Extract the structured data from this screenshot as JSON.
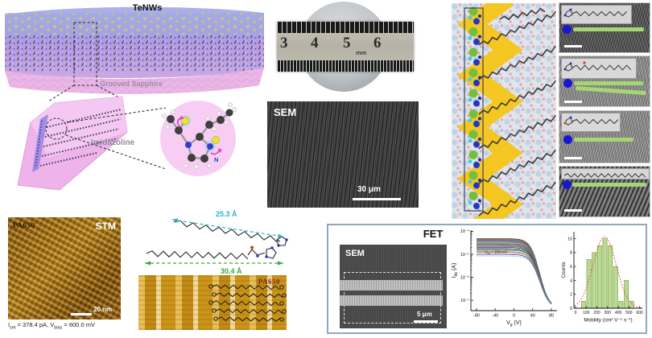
{
  "colors": {
    "green_bar": "#a6d674",
    "marker_blue": "#1717cf",
    "arrow_cyan": "#2ab5c7",
    "arrow_green": "#3aa83a",
    "fet_border": "#8ea8c3"
  },
  "panel_schematic": {
    "label_top": "TeNWs",
    "label_substrate": "Grooved Sapphire",
    "label_molecule": "Imidazoline",
    "atom_label": "N"
  },
  "panel_photo": {
    "ruler_ticks": [
      "3",
      "4",
      "5",
      "6"
    ],
    "ruler_unit": "mm"
  },
  "panel_sem": {
    "label": "SEM",
    "scale_bar": "30 μm"
  },
  "panel_stm": {
    "sample": "PA650",
    "technique": "STM",
    "scale_bar": "20 nm",
    "caption": {
      "i_sym": "I",
      "i_sub": "set",
      "i_rest": " = 378.4 pA, ",
      "v_sym": "V",
      "v_sub": "bias",
      "v_rest": " = 600.0 mV"
    }
  },
  "panel_molecule_lengths": {
    "short": "25.3 Å",
    "long": "30.4 Å"
  },
  "panel_stm_overlay": {
    "sample": "PA650"
  },
  "panel_fet": {
    "title": "FET",
    "sem_label": "SEM",
    "sem_scale_bar": "5 μm"
  },
  "chart_data": [
    {
      "id": "transfer",
      "type": "line",
      "xlabel": {
        "main": "V",
        "sub": "g",
        "rest": " (V)"
      },
      "ylabel": {
        "main": "I",
        "sub": "ds",
        "rest": " (A)"
      },
      "annotation": {
        "main": "V",
        "sub": "ds",
        "rest": " = 100 mV"
      },
      "x_ticks": [
        -80,
        -40,
        0,
        40,
        80
      ],
      "xlim": [
        -92,
        92
      ],
      "y_ticks": [
        {
          "exp": -4,
          "label": "10⁻⁴"
        },
        {
          "exp": -5,
          "label": "10⁻⁵"
        },
        {
          "exp": -6,
          "label": "10⁻⁶"
        },
        {
          "exp": -7,
          "label": "10⁻⁷"
        }
      ],
      "ylog_lim": [
        -7.45,
        -3.95
      ],
      "curve_model": {
        "v_th": 55,
        "slope": 10,
        "log_off": -7.35,
        "vg_range": [
          -80,
          80
        ]
      },
      "on_currents_A": [
        4.8e-05,
        4.5e-05,
        4.2e-05,
        4e-05,
        3.8e-05,
        3.5e-05,
        3.3e-05,
        3e-05,
        2.8e-05,
        2.6e-05,
        2.4e-05,
        2.2e-05,
        2e-05,
        1.8e-05,
        1.6e-05,
        1.5e-05,
        1.3e-05,
        1.2e-05,
        1e-05,
        8.5e-06
      ],
      "curve_colors": [
        "#444444",
        "#c0392b",
        "#27ae60",
        "#2980b9",
        "#8e44ad",
        "#d35400",
        "#16a085",
        "#7f8c8d",
        "#b03a5b",
        "#4a6fa5",
        "#6b8e23",
        "#aa3377",
        "#2255aa",
        "#117733",
        "#882255",
        "#44aa99",
        "#999933",
        "#cc6677",
        "#332288",
        "#88ccee"
      ]
    },
    {
      "id": "mobility_hist",
      "type": "bar",
      "xlabel": "Mobility (cm² V⁻¹ s⁻¹)",
      "ylabel": "Counts",
      "bin_centers": [
        75,
        125,
        175,
        225,
        275,
        325,
        375,
        425,
        475,
        525
      ],
      "counts": [
        1,
        7,
        8,
        9,
        10,
        9,
        6,
        1,
        4,
        1
      ],
      "bin_width": 50,
      "x_ticks": [
        0,
        100,
        200,
        300,
        400,
        500,
        600
      ],
      "y_ticks": [
        0,
        2,
        4,
        6,
        8,
        10
      ],
      "xlim": [
        -15,
        625
      ],
      "ylim": [
        0,
        11
      ],
      "bar_color": "#bcdb92",
      "bar_border": "#7aa34c",
      "fit": {
        "shape": "gaussian",
        "amplitude": 10.3,
        "mean": 272,
        "sigma": 108,
        "color": "#e8483c",
        "style": "dashed"
      }
    }
  ]
}
